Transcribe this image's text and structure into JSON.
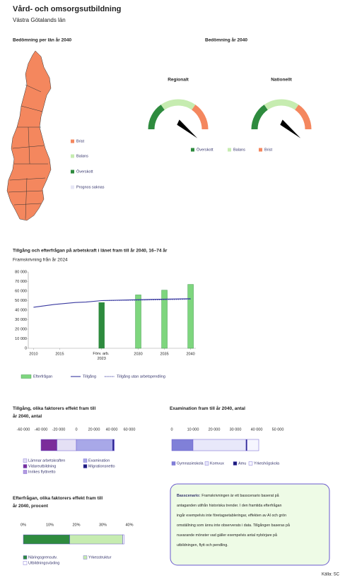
{
  "header": {
    "title": "Vård- och omsorgsutbildning",
    "subtitle": "Västra Götalands län"
  },
  "map": {
    "title": "Bedömning per län år 2040",
    "color": "#f4875e",
    "legend": [
      {
        "name": "Brist",
        "color": "#f4875e"
      },
      {
        "name": "Balans",
        "color": "#c6ecb0"
      },
      {
        "name": "Överskott",
        "color": "#2e8b3e"
      },
      {
        "name": "Prognos saknas",
        "color": "#e6e6f5"
      }
    ]
  },
  "gauges": {
    "title": "Bedömning år 2040",
    "labels": [
      "Regionalt",
      "Nationellt"
    ],
    "legend": [
      {
        "name": "Överskott",
        "color": "#2e8b3e"
      },
      {
        "name": "Balans",
        "color": "#c6ecb0"
      },
      {
        "name": "Brist",
        "color": "#f4875e"
      }
    ]
  },
  "chart_data": [
    {
      "type": "combo",
      "title": "Tillgång och efterfrågan på arbetskraft i länet fram till år 2040, 16–74 år",
      "subtitle": "Framskrivning från år 2024",
      "xlim": [
        2009,
        2041
      ],
      "xticks": [
        2010,
        2015,
        {
          "value": 2023,
          "label": "Förv. arb. 2023"
        },
        2030,
        2035,
        2040
      ],
      "ylim": [
        0,
        80000
      ],
      "yticks": [
        0,
        {
          "value": 10000,
          "label": "10 000"
        },
        {
          "value": 20000,
          "label": "20 000"
        },
        {
          "value": 30000,
          "label": "30 000"
        },
        {
          "value": 40000,
          "label": "40 000"
        },
        {
          "value": 50000,
          "label": "50 000"
        },
        {
          "value": 60000,
          "label": "60 000"
        },
        {
          "value": 70000,
          "label": "70 000"
        },
        {
          "value": 80000,
          "label": "80 000"
        }
      ],
      "grid": false,
      "series": [
        {
          "name": "Efterfrågan",
          "type": "bar",
          "color": "#7ed67e",
          "colors": [
            "#2e8b3e",
            "#7ed67e",
            "#7ed67e",
            "#7ed67e"
          ],
          "x": [
            2023,
            2030,
            2035,
            2040
          ],
          "values": [
            48000,
            56000,
            61000,
            67000
          ]
        },
        {
          "name": "Tillgång",
          "type": "line",
          "color": "#3a3aa0",
          "x": [
            2010,
            2012,
            2014,
            2016,
            2018,
            2020,
            2023,
            2030,
            2035,
            2040
          ],
          "values": [
            43000,
            44500,
            46000,
            47000,
            48000,
            48500,
            50000,
            51000,
            51500,
            52000
          ]
        },
        {
          "name": "Tillgång utan arbetspendling",
          "type": "line",
          "style": "dotted",
          "color": "#3a3aa0",
          "x": [
            2023,
            2030,
            2035,
            2040
          ],
          "values": [
            50000,
            50500,
            51000,
            51500
          ]
        }
      ]
    },
    {
      "type": "stacked_bar",
      "title": "Tillgång, olika faktorers effekt fram till år 2040, antal",
      "xlim": [
        -60000,
        60000
      ],
      "xticks": [
        {
          "value": -60000,
          "label": "-60 000"
        },
        {
          "value": -40000,
          "label": "-40 000"
        },
        {
          "value": -20000,
          "label": "-20 000"
        },
        0,
        {
          "value": 20000,
          "label": "20 000"
        },
        {
          "value": 40000,
          "label": "40 000"
        },
        {
          "value": 60000,
          "label": "60 000"
        }
      ],
      "series": [
        {
          "name": "Lämnar arbetskraften",
          "color": "#e4e0f5",
          "values": [
            -22000
          ]
        },
        {
          "name": "Examination",
          "color": "#a8a8e8",
          "values": [
            41000
          ]
        },
        {
          "name": "Vidareutbildning",
          "color": "#7b2d9a",
          "values": [
            -18000
          ]
        },
        {
          "name": "Migrationsnetto",
          "color": "#1a1a7a",
          "values": [
            1500
          ]
        },
        {
          "name": "Inrikes flyttnetto",
          "color": "#b59ae0",
          "values": [
            500
          ]
        }
      ]
    },
    {
      "type": "stacked_bar",
      "title": "Examination fram till år 2040, antal",
      "xlim": [
        0,
        50000
      ],
      "xticks": [
        0,
        {
          "value": 10000,
          "label": "10 000"
        },
        {
          "value": 20000,
          "label": "20 000"
        },
        {
          "value": 30000,
          "label": "30 000"
        },
        {
          "value": 40000,
          "label": "40 000"
        },
        {
          "value": 50000,
          "label": "50 000"
        }
      ],
      "series": [
        {
          "name": "Gymnasieskola",
          "color": "#8080d8",
          "values": [
            10000
          ]
        },
        {
          "name": "Komvux",
          "color": "#e8e8fa",
          "values": [
            25000
          ]
        },
        {
          "name": "Amu",
          "color": "#1a1a7a",
          "values": [
            500
          ]
        },
        {
          "name": "Yrkeshögskola",
          "color": "#f6f6ff",
          "values": [
            5500
          ]
        }
      ]
    },
    {
      "type": "stacked_bar",
      "title": "Efterfrågan, olika faktorers effekt fram till år 2040, procent",
      "xlim": [
        0,
        40
      ],
      "xticks": [
        {
          "value": 0,
          "label": "0%"
        },
        {
          "value": 10,
          "label": "10%"
        },
        {
          "value": 20,
          "label": "20%"
        },
        {
          "value": 30,
          "label": "30%"
        },
        {
          "value": 40,
          "label": "40%"
        }
      ],
      "series": [
        {
          "name": "Näringsgrensutv.",
          "color": "#2e8b3e",
          "values": [
            17.5
          ]
        },
        {
          "name": "Yrkesstruktur",
          "color": "#c6ecb0",
          "values": [
            20
          ]
        },
        {
          "name": "Utbildningsväxling",
          "color": "#ffffff",
          "values": [
            0.5
          ]
        }
      ]
    }
  ],
  "info": {
    "label": "Basscenario:",
    "lines": [
      "Framskrivningen är ett basscenario baserat på",
      "antaganden utifrån historiska trender. I den framtida efterfrågan",
      "ingår exempelvis inte företagsetableringar, effekten av AI och grön",
      "omställning som ännu inte observerats i data. Tillgången baseras på",
      "nuvarande mönster vad gäller exempelvis antal nybörjare på",
      "utbildningen, flytt och pendling."
    ]
  },
  "source": "Källa: SC"
}
